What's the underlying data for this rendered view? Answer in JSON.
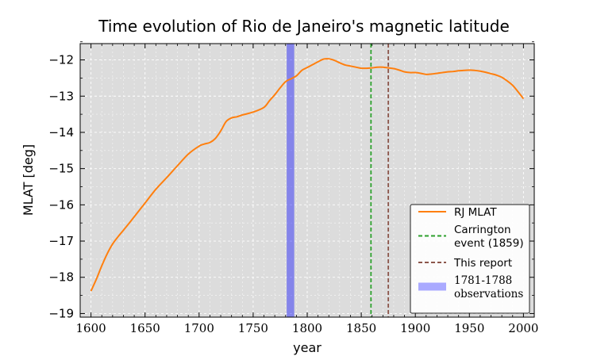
{
  "chart_data": {
    "type": "line",
    "title": "Time evolution of Rio de Janeiro's magnetic latitude",
    "xlabel": "year",
    "ylabel": "MLAT [deg]",
    "xlim": [
      1590,
      2010
    ],
    "ylim": [
      -19.1,
      -11.55
    ],
    "grid": true,
    "x_ticks": [
      1600,
      1650,
      1700,
      1750,
      1800,
      1850,
      1900,
      1950,
      2000
    ],
    "x_tick_labels": [
      "1600",
      "1650",
      "1700",
      "1750",
      "1800",
      "1850",
      "1900",
      "1950",
      "2000"
    ],
    "y_ticks": [
      -12,
      -13,
      -14,
      -15,
      -16,
      -17,
      -18,
      -19
    ],
    "y_tick_labels": [
      "−12",
      "−13",
      "−14",
      "−15",
      "−16",
      "−17",
      "−18",
      "−19"
    ],
    "series": [
      {
        "name": "RJ MLAT",
        "color": "#ff7f0e",
        "x": [
          1600,
          1605,
          1610,
          1615,
          1620,
          1625,
          1630,
          1640,
          1650,
          1660,
          1670,
          1680,
          1690,
          1700,
          1705,
          1710,
          1715,
          1720,
          1725,
          1730,
          1735,
          1740,
          1750,
          1760,
          1765,
          1770,
          1775,
          1780,
          1785,
          1790,
          1795,
          1800,
          1805,
          1810,
          1815,
          1820,
          1825,
          1830,
          1835,
          1840,
          1845,
          1850,
          1855,
          1860,
          1865,
          1870,
          1875,
          1880,
          1885,
          1890,
          1895,
          1900,
          1905,
          1910,
          1915,
          1920,
          1925,
          1930,
          1935,
          1940,
          1945,
          1950,
          1955,
          1960,
          1965,
          1970,
          1975,
          1980,
          1985,
          1990,
          1995,
          2000
        ],
        "values": [
          -18.38,
          -18.05,
          -17.68,
          -17.35,
          -17.08,
          -16.88,
          -16.7,
          -16.33,
          -15.95,
          -15.57,
          -15.25,
          -14.92,
          -14.6,
          -14.38,
          -14.32,
          -14.28,
          -14.17,
          -13.96,
          -13.7,
          -13.6,
          -13.57,
          -13.52,
          -13.44,
          -13.31,
          -13.13,
          -12.96,
          -12.77,
          -12.6,
          -12.52,
          -12.44,
          -12.29,
          -12.21,
          -12.13,
          -12.05,
          -11.98,
          -11.97,
          -12.01,
          -12.08,
          -12.14,
          -12.17,
          -12.2,
          -12.23,
          -12.23,
          -12.22,
          -12.2,
          -12.2,
          -12.22,
          -12.24,
          -12.28,
          -12.33,
          -12.35,
          -12.35,
          -12.37,
          -12.4,
          -12.39,
          -12.37,
          -12.35,
          -12.33,
          -12.32,
          -12.3,
          -12.29,
          -12.28,
          -12.29,
          -12.31,
          -12.34,
          -12.38,
          -12.42,
          -12.48,
          -12.58,
          -12.7,
          -12.88,
          -13.07
        ]
      }
    ],
    "vlines": [
      {
        "name": "Carrington event (1859)",
        "x": 1859,
        "color": "#2ca02c",
        "style": "dashed"
      },
      {
        "name": "This report",
        "x": 1875,
        "color": "#8c564b",
        "style": "dashed"
      }
    ],
    "spans": [
      {
        "name": "1781-1788 observations",
        "x0": 1781,
        "x1": 1788,
        "color": "#0000ff",
        "alpha": 0.4
      }
    ],
    "legend": {
      "position": "lower-right",
      "entries": [
        {
          "lines": [
            "RJ MLAT"
          ],
          "kind": "line",
          "color": "#ff7f0e"
        },
        {
          "lines": [
            "Carrington",
            "event (1859)"
          ],
          "kind": "dashed",
          "color": "#2ca02c"
        },
        {
          "lines": [
            "This report"
          ],
          "kind": "dashed",
          "color": "#8c564b"
        },
        {
          "lines": [
            "1781-1788",
            "observations"
          ],
          "kind": "patch",
          "color": "#aaaaff"
        }
      ]
    }
  }
}
